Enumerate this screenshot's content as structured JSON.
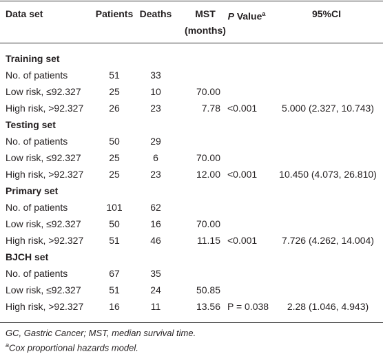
{
  "table": {
    "header": {
      "data_set": "Data set",
      "patients": "Patients",
      "deaths": "Deaths",
      "mst": "MST",
      "mst_unit": "(months)",
      "p_italic": "P",
      "p_text": "Value",
      "p_sup": "a",
      "ci": "95%CI"
    },
    "sections": [
      {
        "title": "Training set",
        "rows": [
          [
            "No. of patients",
            "51",
            "33",
            null,
            null,
            null
          ],
          [
            "Low risk, ≤92.327",
            "25",
            "10",
            "70.00",
            null,
            null
          ],
          [
            "High risk, >92.327",
            "26",
            "23",
            "7.78",
            "<0.001",
            "5.000 (2.327, 10.743)"
          ]
        ]
      },
      {
        "title": "Testing set",
        "rows": [
          [
            "No. of patients",
            "50",
            "29",
            null,
            null,
            null
          ],
          [
            "Low risk, ≤92.327",
            "25",
            "6",
            "70.00",
            null,
            null
          ],
          [
            "High risk, >92.327",
            "25",
            "23",
            "12.00",
            "<0.001",
            "10.450 (4.073, 26.810)"
          ]
        ]
      },
      {
        "title": "Primary set",
        "rows": [
          [
            "No. of patients",
            "101",
            "62",
            null,
            null,
            null
          ],
          [
            "Low risk, ≤92.327",
            "50",
            "16",
            "70.00",
            null,
            null
          ],
          [
            "High risk, >92.327",
            "51",
            "46",
            "11.15",
            "<0.001",
            "7.726 (4.262, 14.004)"
          ]
        ]
      },
      {
        "title": "BJCH set",
        "rows": [
          [
            "No. of patients",
            "67",
            "35",
            null,
            null,
            null
          ],
          [
            "Low risk, ≤92.327",
            "51",
            "24",
            "50.85",
            null,
            null
          ],
          [
            "High risk, >92.327",
            "16",
            "11",
            "13.56",
            "P = 0.038",
            "2.28 (1.046, 4.943)"
          ]
        ]
      }
    ],
    "notes": {
      "abbrev": "GC, Gastric Cancer; MST, median survival time.",
      "sup": "a",
      "model": "Cox proportional hazards model."
    }
  }
}
